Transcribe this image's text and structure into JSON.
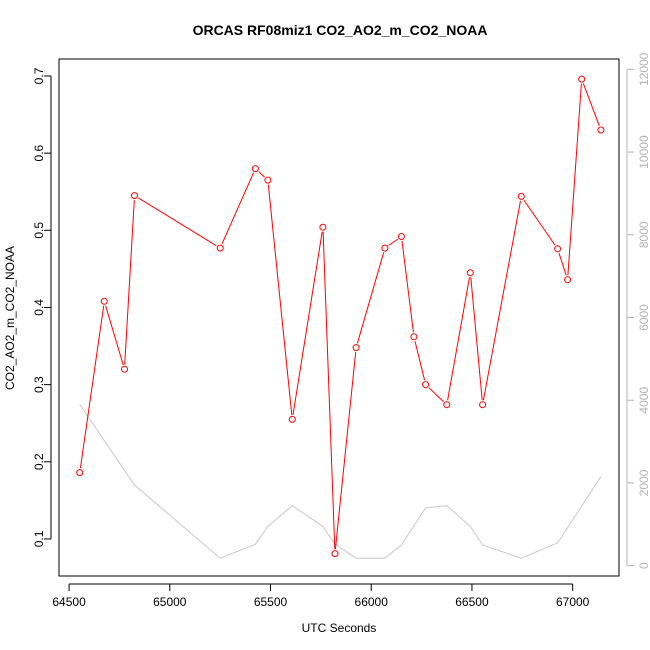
{
  "chart_data": {
    "type": "line",
    "title": "ORCAS RF08miz1 CO2_AO2_m_CO2_NOAA",
    "xlabel": "UTC Seconds",
    "ylabel": "CO2_AO2_m_CO2_NOAA",
    "xlim": [
      64450,
      67230
    ],
    "ylim": [
      0.052,
      0.722
    ],
    "y2lim": [
      -250,
      12250
    ],
    "x_ticks": [
      64500,
      65000,
      65500,
      66000,
      66500,
      67000
    ],
    "y_ticks": [
      0.1,
      0.2,
      0.3,
      0.4,
      0.5,
      0.6,
      0.7
    ],
    "y2_ticks": [
      0,
      2000,
      4000,
      6000,
      8000,
      10000,
      12000
    ],
    "grid": false,
    "series": [
      {
        "role": "primary",
        "color": "#ff0000",
        "marker": "open-circle",
        "x": [
          64553,
          64675,
          64775,
          64825,
          65250,
          65425,
          65487,
          65608,
          65760,
          65820,
          65925,
          66068,
          66150,
          66212,
          66270,
          66375,
          66492,
          66553,
          66745,
          66925,
          66975,
          67045,
          67140
        ],
        "y": [
          0.186,
          0.408,
          0.32,
          0.545,
          0.477,
          0.58,
          0.565,
          0.255,
          0.504,
          0.081,
          0.348,
          0.477,
          0.492,
          0.362,
          0.3,
          0.274,
          0.445,
          0.274,
          0.544,
          0.476,
          0.436,
          0.696,
          0.63
        ]
      },
      {
        "role": "secondary-axis",
        "color": "#c8c8c8",
        "marker": "none",
        "x": [
          64553,
          64825,
          65250,
          65425,
          65487,
          65608,
          65760,
          65820,
          65925,
          66068,
          66150,
          66270,
          66375,
          66492,
          66553,
          66745,
          66925,
          67140
        ],
        "y": [
          3900,
          1950,
          180,
          520,
          950,
          1450,
          950,
          520,
          180,
          180,
          500,
          1400,
          1450,
          950,
          500,
          180,
          550,
          2150
        ]
      }
    ]
  }
}
